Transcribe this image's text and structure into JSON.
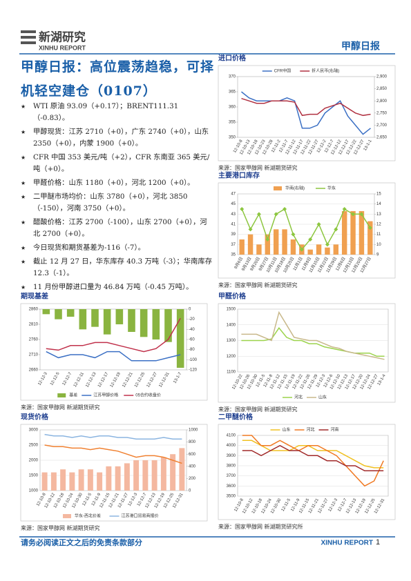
{
  "header": {
    "logo_cn": "新湖研究",
    "logo_en": "XINHU REPORT",
    "report_name": "甲醇日报"
  },
  "headline": "甲醇日报：高位震荡趋稳，可择机轻空建仓（0107）",
  "bullets": [
    "WTI 原油 93.09（+0.17）；BRENT111.31（-0.83）。",
    "甲醇现货：江苏 2710（+0），广东 2740（+0），山东 2350（+0），内蒙 1900（+0）。",
    "CFR 中国 353 美元/吨（+2），CFR 东南亚 365 美元/吨（+0）。",
    "甲醛价格：山东 1180（+0），河北 1200（+0）。",
    "二甲醚市场均价：山东 3780（+0），河北 3850（-150），河南 3750（+0）。",
    "醋酸价格：江苏 2700（-100），山东 2700（+0），河北 2700（+0）。",
    "今日现货和期货基差为-116（-7）。",
    "截止 12 月 27 日，华东库存 40.3 万吨（-3）；华南库存 12.3（-1）。",
    "11 月份甲醇进口量为 46.84 万吨（-0.45 万吨）。"
  ],
  "charts": [
    {
      "type": "line",
      "title": "进口价格",
      "source": "来源：国家甲醇网 新湖期货研究",
      "legend": "top",
      "grid": false,
      "categories": [
        "12-10-8",
        "12-10-13",
        "12-10-18",
        "12-10-23",
        "12-10-28",
        "12-11-2",
        "12-11-7",
        "12-11-12",
        "12-11-17",
        "12-11-22",
        "12-11-27",
        "12-12-2",
        "12-12-7",
        "12-12-12",
        "12-12-17",
        "12-12-22",
        "12-12-27",
        "13-1-1"
      ],
      "ylim": [
        350,
        370
      ],
      "yticks": [
        350,
        355,
        360,
        365,
        370
      ],
      "y2lim": [
        2650,
        2900
      ],
      "y2ticks": [
        {
          "value": 2650,
          "label": "2,650"
        },
        {
          "value": 2700,
          "label": "2,700"
        },
        {
          "value": 2750,
          "label": "2,750"
        },
        {
          "value": 2800,
          "label": "2,800"
        },
        {
          "value": 2850,
          "label": "2,850"
        },
        {
          "value": 2900,
          "label": "2,900"
        }
      ],
      "series": [
        {
          "name": "CFR中国",
          "type": "line",
          "color": "#3a6fc4",
          "values": [
            365,
            363,
            362,
            362,
            362,
            362,
            363,
            362,
            353,
            353,
            354,
            358,
            360,
            362,
            357,
            354,
            351,
            353
          ]
        },
        {
          "name": "折人民币(右轴)",
          "type": "line",
          "axis": "y2",
          "color": "#b03040",
          "values": [
            2810,
            2800,
            2790,
            2790,
            2800,
            2800,
            2800,
            2795,
            2740,
            2745,
            2745,
            2770,
            2780,
            2790,
            2770,
            2750,
            2740,
            2745
          ]
        }
      ]
    },
    {
      "type": "combo",
      "title": "主要港口库存",
      "source": "来源：国家甲醇网 新湖期货研究",
      "legend": "top",
      "grid": true,
      "categories": [
        "9月6日",
        "9月13日",
        "9月20日",
        "9月27日",
        "10月11日",
        "10月18日",
        "10月25日",
        "11月1日",
        "11月8日",
        "11月15日",
        "11月22日",
        "11月29日",
        "12月6日",
        "12月13日",
        "12月20日",
        "12月27日"
      ],
      "ylim": [
        35,
        47
      ],
      "yticks": [
        35,
        37,
        39,
        41,
        43,
        45,
        47
      ],
      "y2lim": [
        9,
        15
      ],
      "y2ticks": [
        9,
        10,
        11,
        12,
        13,
        14,
        15
      ],
      "series": [
        {
          "name": "华南(右轴)",
          "type": "bar",
          "axis": "y2",
          "color": "#f0a050",
          "values": [
            10.5,
            11,
            10,
            11,
            11.5,
            11.5,
            10.5,
            10,
            9.5,
            10,
            9.7,
            10,
            13.3,
            13.3,
            13.3,
            12.3
          ]
        },
        {
          "name": "华东",
          "type": "line",
          "marker": "diamond",
          "color": "#8cc63f",
          "values": [
            44,
            40,
            43,
            38,
            43,
            44,
            39,
            36,
            38,
            41,
            37,
            40,
            44,
            43,
            43,
            40.3
          ]
        }
      ]
    },
    {
      "type": "combo",
      "title": "期现基差",
      "source": "来源：国家甲醇网 新湖期货研究",
      "legend": "bottom",
      "grid": false,
      "categories": [
        "12-12-3",
        "12-12-5",
        "12-12-7",
        "12-12-11",
        "12-12-13",
        "12-12-17",
        "12-12-19",
        "12-12-21",
        "12-12-25",
        "12-12-27",
        "12-12-31",
        "13-1-7"
      ],
      "ylim": [
        2660,
        2860
      ],
      "yticks": [
        2660,
        2710,
        2760,
        2810,
        2860
      ],
      "y2lim": [
        -120,
        0
      ],
      "y2ticks": [
        -120,
        -100,
        -80,
        -60,
        -40,
        -20,
        0
      ],
      "series": [
        {
          "name": "基差",
          "type": "bar",
          "axis": "y2",
          "color": "#8ab440",
          "values": [
            -10,
            -20,
            -15,
            -40,
            -35,
            -50,
            -30,
            -45,
            -55,
            -60,
            -65,
            -116
          ]
        },
        {
          "name": "江苏甲醇价格",
          "type": "line",
          "color": "#3a6fc4",
          "values": [
            2720,
            2700,
            2710,
            2710,
            2700,
            2720,
            2720,
            2690,
            2690,
            2690,
            2700,
            2710
          ]
        },
        {
          "name": "05合约收盘价",
          "type": "line",
          "color": "#c0304a",
          "values": [
            2730,
            2725,
            2740,
            2740,
            2750,
            2750,
            2740,
            2730,
            2720,
            2730,
            2760,
            2830
          ]
        }
      ]
    },
    {
      "type": "line",
      "title": "甲醛价格",
      "source": "来源：国家甲醇网 新湖期货研究",
      "legend": "bottom",
      "grid": true,
      "categories": [
        "12-10-22",
        "12-10-26",
        "12-10-30",
        "12-11-5",
        "12-11-8",
        "12-11-12",
        "12-11-15",
        "12-11-19",
        "12-11-22",
        "12-11-26",
        "12-11-29",
        "12-12-3",
        "12-12-6",
        "12-12-10",
        "12-12-13",
        "12-12-17",
        "12-12-20",
        "12-12-24",
        "12-12-27",
        "13-1-4"
      ],
      "ylim": [
        1100,
        1500
      ],
      "yticks": [
        1100,
        1200,
        1300,
        1400,
        1500
      ],
      "series": [
        {
          "name": "河北",
          "type": "line",
          "color": "#9bd34a",
          "values": [
            1300,
            1300,
            1300,
            1300,
            1310,
            1380,
            1320,
            1300,
            1300,
            1280,
            1280,
            1260,
            1250,
            1240,
            1230,
            1220,
            1220,
            1220,
            1200,
            1200
          ]
        },
        {
          "name": "山东",
          "type": "line",
          "color": "#c8b88a",
          "values": [
            1340,
            1340,
            1340,
            1320,
            1300,
            1480,
            1400,
            1320,
            1310,
            1300,
            1300,
            1280,
            1260,
            1250,
            1230,
            1220,
            1210,
            1200,
            1190,
            1180
          ]
        }
      ]
    },
    {
      "type": "combo",
      "title": "现货价格",
      "source": "来源：国家甲醇网 新湖期货研究",
      "legend": "bottom",
      "grid": true,
      "categories": [
        "12-10-8",
        "12-10-12",
        "12-10-18",
        "12-10-24",
        "12-10-30",
        "12-11-5",
        "12-11-9",
        "12-11-15",
        "12-11-21",
        "12-11-27",
        "12-12-3",
        "12-12-7",
        "12-12-13",
        "12-12-19",
        "12-12-25",
        "12-12-31"
      ],
      "ylim": [
        1000,
        3000
      ],
      "yticks": [
        1000,
        1500,
        2000,
        2500,
        3000
      ],
      "y2lim": [
        0,
        1000
      ],
      "y2ticks": [
        0,
        200,
        400,
        600,
        800,
        1000
      ],
      "series": [
        {
          "name": "华东-西北价差",
          "type": "bar",
          "axis": "y2",
          "color": "#f4b8a0",
          "values": [
            300,
            300,
            350,
            300,
            350,
            350,
            300,
            400,
            400,
            450,
            500,
            500,
            500,
            550,
            600,
            700
          ]
        },
        {
          "type": "line",
          "color": "#f08030",
          "values": [
            2500,
            2450,
            2450,
            2400,
            2400,
            2350,
            2400,
            2350,
            2300,
            2200,
            2100,
            2150,
            2150,
            2100,
            2000,
            1900
          ]
        },
        {
          "name": "江苏港口贸易商报价",
          "type": "line",
          "color": "#8ab4e0",
          "values": [
            2850,
            2800,
            2800,
            2750,
            2800,
            2750,
            2800,
            2800,
            2750,
            2750,
            2700,
            2700,
            2700,
            2750,
            2700,
            2700
          ]
        }
      ]
    },
    {
      "type": "line",
      "title": "二甲醚价格",
      "source": "来源：国家甲醇网 新湖期货研究所",
      "legend": "top",
      "grid": true,
      "categories": [
        "12-10-8",
        "12-10-12",
        "12-10-18",
        "12-10-24",
        "12-10-30",
        "12-11-5",
        "12-11-9",
        "12-11-15",
        "12-11-21",
        "12-11-27",
        "12-12-3",
        "12-12-7",
        "12-12-13",
        "12-12-19",
        "12-12-25",
        "12-12-31"
      ],
      "ylim": [
        3500,
        4100
      ],
      "yticks": [
        3500,
        3600,
        3700,
        3800,
        3900,
        4000,
        4100
      ],
      "series": [
        {
          "name": "山东",
          "type": "line",
          "color": "#f0c020",
          "values": [
            4050,
            4050,
            4000,
            3950,
            3950,
            3950,
            4000,
            4000,
            3950,
            3950,
            3950,
            3900,
            3850,
            3800,
            3780,
            3780
          ]
        },
        {
          "name": "河北",
          "type": "line",
          "color": "#f07820",
          "values": [
            4100,
            4100,
            4000,
            4000,
            4050,
            4000,
            3950,
            4000,
            4000,
            3950,
            3900,
            3800,
            3700,
            3600,
            3650,
            3850
          ]
        },
        {
          "name": "河南",
          "type": "line",
          "color": "#a02828",
          "values": [
            3950,
            3950,
            3900,
            3950,
            4000,
            3950,
            3950,
            3900,
            3900,
            3850,
            3850,
            3800,
            3800,
            3750,
            3750,
            3750
          ]
        }
      ]
    }
  ],
  "footer": {
    "disclaimer": "请务必阅读正文之后的免责条款部分",
    "brand": "XINHU REPORT",
    "page": "1"
  }
}
